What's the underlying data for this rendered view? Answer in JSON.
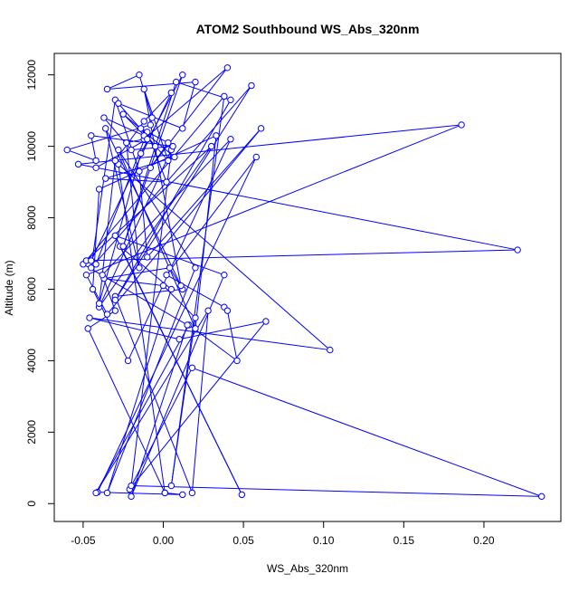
{
  "chart_data": {
    "type": "line",
    "title": "ATOM2 Southbound WS_Abs_320nm",
    "xlabel": "WS_Abs_320nm",
    "ylabel": "Altitude (m)",
    "xlim": [
      -0.068,
      0.248
    ],
    "ylim": [
      -500,
      12600
    ],
    "x_ticks": [
      -0.05,
      0.0,
      0.05,
      0.1,
      0.15,
      0.2
    ],
    "x_tick_labels": [
      "-0.05",
      "0.00",
      "0.05",
      "0.10",
      "0.15",
      "0.20"
    ],
    "y_ticks": [
      0,
      2000,
      4000,
      6000,
      8000,
      10000,
      12000
    ],
    "y_tick_labels": [
      "0",
      "2000",
      "4000",
      "6000",
      "8000",
      "10000",
      "12000"
    ],
    "grid": false,
    "legend": "none",
    "series": [
      {
        "color": "#0000ff",
        "markers": "open-circle",
        "x": [
          0.001,
          0.012,
          -0.041,
          0.058,
          0.002,
          0.038,
          0.04,
          0.046,
          0.016,
          -0.042,
          0.028,
          0.018,
          -0.03,
          0.012,
          0.004,
          -0.037,
          0.0,
          0.02,
          0.005,
          0.038,
          -0.05,
          0.015,
          -0.02,
          0.038,
          -0.03,
          0.049,
          -0.027,
          0.005,
          -0.035,
          0.02,
          -0.028,
          0.02,
          0.033,
          -0.04,
          -0.044,
          -0.022,
          0.042,
          -0.038,
          -0.03,
          -0.047,
          0.001,
          -0.028,
          0.104,
          -0.046,
          0.01,
          0.064,
          -0.021,
          0.018,
          0.236,
          -0.02,
          0.005,
          -0.04,
          0.03,
          -0.048,
          0.221,
          -0.053,
          0.186,
          -0.048,
          -0.035,
          0.061,
          -0.01,
          -0.015,
          -0.03,
          -0.045,
          0.055,
          -0.03,
          0.042,
          0.008,
          -0.025,
          0.012,
          -0.014,
          -0.04,
          -0.03,
          -0.012,
          0.005,
          -0.045,
          -0.042,
          -0.01,
          0.002,
          -0.036,
          0.007,
          -0.025,
          -0.005,
          -0.014,
          0.003,
          -0.008,
          0.04,
          -0.012,
          -0.023,
          -0.015,
          -0.036,
          0.011,
          -0.012,
          0.003,
          -0.028,
          0.012,
          0.02,
          -0.035,
          -0.015,
          -0.007,
          -0.008,
          -0.06,
          -0.042,
          -0.045,
          0.006,
          -0.02,
          -0.037,
          -0.012,
          -0.01,
          -0.042
        ],
        "y": [
          300,
          250,
          320,
          9700,
          6400,
          5500,
          5400,
          4000,
          5000,
          300,
          5400,
          300,
          5800,
          6000,
          6600,
          6300,
          6100,
          5200,
          500,
          11400,
          6700,
          5000,
          200,
          6400,
          7500,
          250,
          7200,
          6000,
          300,
          6600,
          9900,
          4900,
          10300,
          8800,
          6000,
          4000,
          10200,
          6400,
          5400,
          4900,
          300,
          9500,
          4300,
          5200,
          4600,
          5100,
          400,
          3800,
          200,
          500,
          9900,
          5500,
          10000,
          6800,
          7100,
          9500,
          10600,
          6400,
          5300,
          10500,
          6900,
          9300,
          11300,
          6600,
          11700,
          5700,
          11300,
          11800,
          7200,
          12000,
          9800,
          5600,
          9600,
          10700,
          11500,
          6800,
          6700,
          10400,
          9000,
          9100,
          9700,
          10900,
          10000,
          10500,
          10100,
          9400,
          12200,
          10200,
          10100,
          6600,
          10500,
          6100,
          11600,
          9600,
          11200,
          10500,
          11800,
          11600,
          12000,
          10800,
          10600,
          9900,
          9600,
          10300,
          10000,
          9900,
          10800,
          10300,
          10200,
          9400
        ]
      }
    ]
  }
}
